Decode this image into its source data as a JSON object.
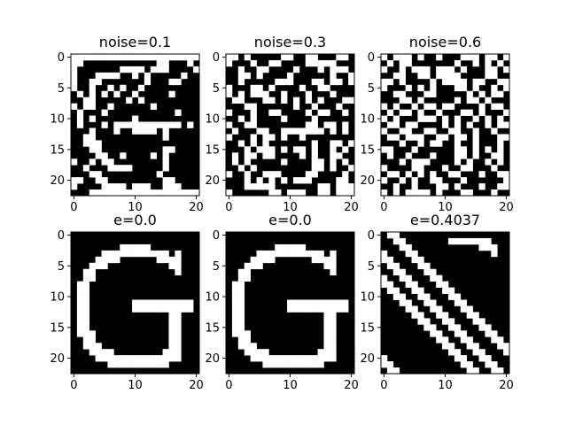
{
  "chart_data": [
    {
      "type": "heatmap",
      "title": "noise=0.1",
      "xticks": [
        0,
        10,
        20
      ],
      "yticks": [
        0,
        5,
        10,
        15,
        20
      ],
      "size": [
        21,
        23
      ],
      "colormap": {
        "0": "#000000",
        "1": "#ffffff"
      },
      "grid": [
        "111111111111111111111",
        "110000000000001100010",
        "100000001111011100001",
        "100011110010100000100",
        "100110000000100011000",
        "100100101001000000000",
        "010101010010000010000",
        "001100000101000000000",
        "101100100000010000000",
        "010001000000000001000",
        "010100000010000000000",
        "010001011111111111010",
        "000100010011110100000",
        "001100000000000100000",
        "001110000000000000000",
        "000110000000000110000",
        "000011001000010100000",
        "100101100000000100000",
        "001000111100000100000",
        "000110000000001000000",
        "110011000000000110000",
        "100001111011100111000",
        "000111111111111111111"
      ]
    },
    {
      "type": "heatmap",
      "title": "noise=0.3",
      "xticks": [
        0,
        10,
        20
      ],
      "yticks": [
        0,
        5,
        10,
        15,
        20
      ],
      "size": [
        21,
        23
      ],
      "colormap": {
        "0": "#000000",
        "1": "#ffffff"
      },
      "grid": [
        "110100000110011000110",
        "100010011000011111000",
        "001001100001000101110",
        "001101000010000001001",
        "001000001110001101101",
        "100011010000100110000",
        "101011100100010001000",
        "011000110101010100011",
        "000110000001001000100",
        "100010011000010110010",
        "001010000100001000000",
        "100110000000011011010",
        "010001100111111101010",
        "100010110100100000000",
        "001010100000001001101",
        "000101110101101001010",
        "010110110000101001100",
        "010100000100001101010",
        "001010000000001101001",
        "100100111000011000010",
        "000101010101110000110",
        "000111110000000110111",
        "100000011011100110111"
      ]
    },
    {
      "type": "heatmap",
      "title": "noise=0.6",
      "xticks": [
        0,
        10,
        20
      ],
      "yticks": [
        0,
        5,
        10,
        15,
        20
      ],
      "size": [
        21,
        23
      ],
      "colormap": {
        "0": "#000000",
        "1": "#ffffff"
      },
      "grid": [
        "101110100100011101101",
        "010110000000100101010",
        "100101110111010001101",
        "001100110111100001100",
        "110100001011110110011",
        "100010101000110100101",
        "001100011000001010110",
        "000110100000101101000",
        "101001011011000010110",
        "010110100100011010001",
        "101000111010100101010",
        "011011000010101001011",
        "100110011001100100100",
        "011011100110110100011",
        "000100101100100100010",
        "110001000000110101010",
        "010010001000110100110",
        "000101110000101001010",
        "100001100010011000100",
        "011010101001100010011",
        "100101001100010000001",
        "001001000110100010011",
        "101011110100011000100"
      ]
    },
    {
      "type": "heatmap",
      "title": "e=0.0",
      "xticks": [
        0,
        10,
        20
      ],
      "yticks": [
        0,
        5,
        10,
        15,
        20
      ],
      "size": [
        21,
        23
      ],
      "colormap": {
        "0": "#000000",
        "1": "#ffffff"
      },
      "grid": [
        "000000000000000000000",
        "000000000000000000000",
        "000000001111100000000",
        "000001111111111101000",
        "000011110000001111000",
        "000111000000000011000",
        "001100000000000001000",
        "001100000000000000000",
        "011000000000000000000",
        "011000000000000000000",
        "011000000000000000000",
        "011000000011111111110",
        "011000000011111111110",
        "011000000000000011000",
        "011000000000000011000",
        "011000000000000011000",
        "011100000000000011000",
        "001100000000000011000",
        "001110000000000011000",
        "000111100000000111000",
        "000011111111111111000",
        "000000111111111100000",
        "000000000000000000000"
      ]
    },
    {
      "type": "heatmap",
      "title": "e=0.0",
      "xticks": [
        0,
        10,
        20
      ],
      "yticks": [
        0,
        5,
        10,
        15,
        20
      ],
      "size": [
        21,
        23
      ],
      "colormap": {
        "0": "#000000",
        "1": "#ffffff"
      },
      "grid": [
        "000000000000000000000",
        "000000000000000000000",
        "000000001111100000000",
        "000001111111111101000",
        "000011110000001111000",
        "000111000000000011000",
        "001100000000000001000",
        "001100000000000000000",
        "011000000000000000000",
        "011000000000000000000",
        "011000000000000000000",
        "011000000011111111110",
        "011000000011111111110",
        "011000000000000011000",
        "011000000000000011000",
        "011000000000000011000",
        "011100000000000011000",
        "001100000000000011000",
        "001110000000000011000",
        "000111100000000111000",
        "000011111111111111000",
        "000000111111111100000",
        "000000000000000000000"
      ]
    },
    {
      "type": "heatmap",
      "title": "e=0.4037",
      "xticks": [
        0,
        10,
        20
      ],
      "yticks": [
        0,
        5,
        10,
        15,
        20
      ],
      "size": [
        21,
        23
      ],
      "colormap": {
        "0": "#000000",
        "1": "#ffffff"
      },
      "grid": [
        "011000000000000000000",
        "001100000001111111000",
        "000110000000000011100",
        "100011000000000000100",
        "110001100000000000000",
        "011000110000000000000",
        "001100011000000000000",
        "100110001100000000000",
        "110011000110000000000",
        "011001100011000000000",
        "001100110001100000000",
        "000110011000110000000",
        "000011001100011000000",
        "000001100110001100000",
        "000000110011000110000",
        "000000011001100011000",
        "000000001100110001100",
        "000000000110011000110",
        "000000000011001100011",
        "000000000001100110001",
        "100000000000110011000",
        "110000000000011001100",
        "011000000000001100110"
      ]
    }
  ]
}
